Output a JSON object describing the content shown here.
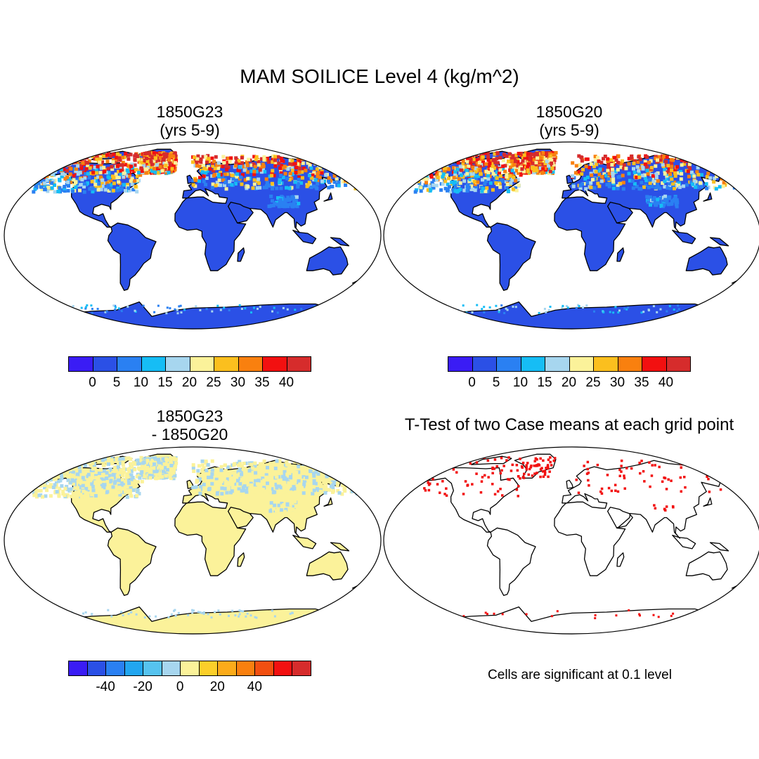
{
  "title": "MAM SOILICE Level 4 (kg/m^2)",
  "panels": [
    {
      "title": "1850G23\n(yrs 5-9)",
      "kind": "field"
    },
    {
      "title": "1850G20\n(yrs 5-9)",
      "kind": "field"
    },
    {
      "title": "1850G23\n- 1850G20",
      "kind": "difference"
    },
    {
      "title": "T-Test of two Case means at each grid point",
      "kind": "significance"
    }
  ],
  "colorbar_field": {
    "colors": [
      "#3a1cf5",
      "#2b50e6",
      "#2a80f2",
      "#16bdf5",
      "#a7d6ef",
      "#fbf29a",
      "#fbbf1e",
      "#f9800f",
      "#f21010",
      "#d62c2c"
    ],
    "labels": [
      "0",
      "5",
      "10",
      "15",
      "20",
      "25",
      "30",
      "35",
      "40"
    ]
  },
  "colorbar_diff": {
    "colors": [
      "#3a1cf5",
      "#2b50e6",
      "#2a80f2",
      "#22a6f0",
      "#56c3ef",
      "#a7d6ef",
      "#fbf29a",
      "#fbcf2a",
      "#fbab1a",
      "#f9800f",
      "#f24f10",
      "#f21010",
      "#d62c2c"
    ],
    "labels": [
      "-40",
      "-20",
      "0",
      "20",
      "40"
    ]
  },
  "significance_note": "Cells are significant at 0.1 level"
}
